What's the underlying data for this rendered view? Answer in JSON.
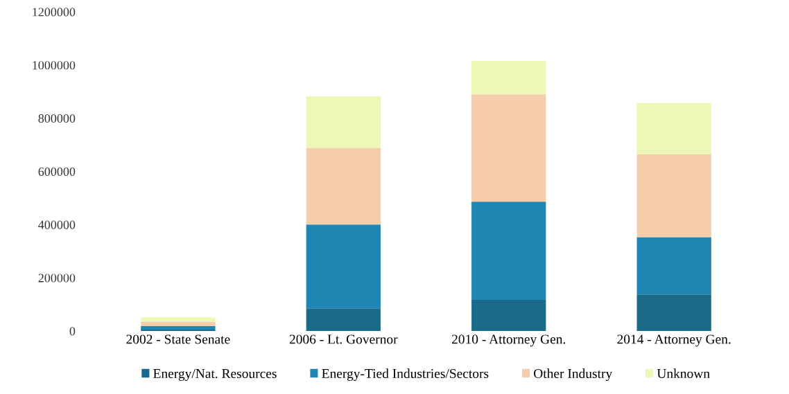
{
  "chart_data": {
    "type": "bar",
    "stacked": true,
    "categories": [
      "2002 - State Senate",
      "2006 - Lt. Governor",
      "2010 - Attorney Gen.",
      "2014 - Attorney Gen."
    ],
    "series": [
      {
        "name": "Energy/Nat. Resources",
        "color": "#1c6a8a",
        "values": [
          5000,
          85000,
          117000,
          137000
        ]
      },
      {
        "name": "Energy-Tied Industries/Sectors",
        "color": "#1f86b3",
        "values": [
          13000,
          315000,
          369000,
          216000
        ]
      },
      {
        "name": "Other Industry",
        "color": "#f6cdaa",
        "values": [
          17000,
          287000,
          404000,
          311000
        ]
      },
      {
        "name": "Unknown",
        "color": "#eef7b5",
        "values": [
          16000,
          195000,
          126000,
          193000
        ]
      }
    ],
    "ylim": [
      0,
      1200000
    ],
    "yticks": [
      0,
      200000,
      400000,
      600000,
      800000,
      1000000,
      1200000
    ],
    "grid": false,
    "legend": "bottom"
  }
}
